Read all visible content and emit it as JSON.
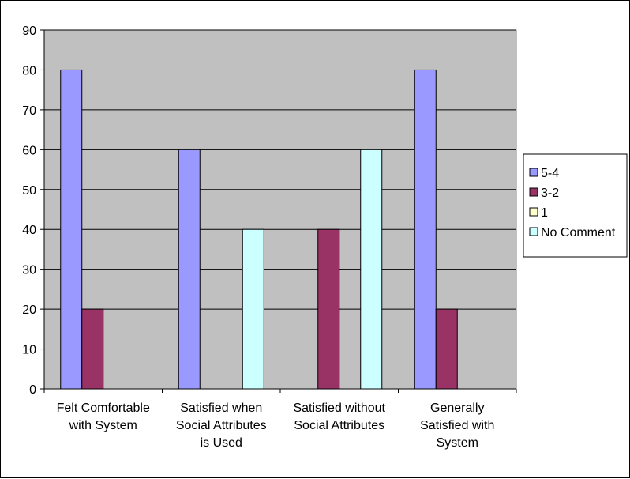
{
  "chart_data": {
    "type": "bar",
    "title": "",
    "xlabel": "",
    "ylabel": "",
    "ylim": [
      0,
      90
    ],
    "yticks": [
      0,
      10,
      20,
      30,
      40,
      50,
      60,
      70,
      80,
      90
    ],
    "grid": true,
    "legend_position": "right",
    "plot_background": "#c0c0c0",
    "categories": [
      [
        "Felt Comfortable",
        "with System"
      ],
      [
        "Satisfied when",
        "Social Attributes",
        "is Used"
      ],
      [
        "Satisfied without",
        "Social Attributes"
      ],
      [
        "Generally",
        "Satisfied with",
        "System"
      ]
    ],
    "series": [
      {
        "name": "5-4",
        "color": "#9999ff",
        "values": [
          80,
          60,
          0,
          80
        ]
      },
      {
        "name": "3-2",
        "color": "#993366",
        "values": [
          20,
          0,
          40,
          20
        ]
      },
      {
        "name": "1",
        "color": "#ffffcc",
        "values": [
          0,
          0,
          0,
          0
        ]
      },
      {
        "name": "No Comment",
        "color": "#ccffff",
        "values": [
          0,
          40,
          60,
          0
        ]
      }
    ]
  }
}
